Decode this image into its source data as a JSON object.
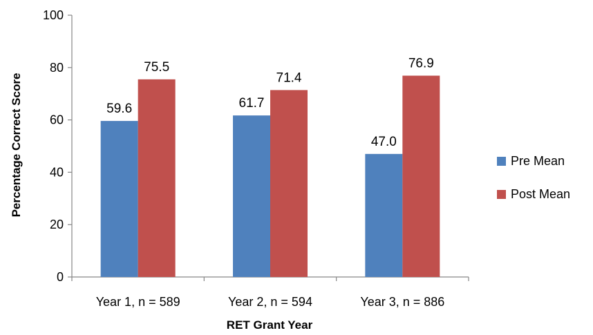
{
  "chart_data": {
    "type": "bar",
    "categories": [
      "Year 1, n = 589",
      "Year 2, n = 594",
      "Year 3, n = 886"
    ],
    "series": [
      {
        "name": "Pre Mean",
        "values": [
          59.6,
          61.7,
          47.0
        ],
        "labels": [
          "59.6",
          "61.7",
          "47.0"
        ],
        "color": "#4f81bd"
      },
      {
        "name": "Post Mean",
        "values": [
          75.5,
          71.4,
          76.9
        ],
        "labels": [
          "75.5",
          "71.4",
          "76.9"
        ],
        "color": "#c0504d"
      }
    ],
    "xlabel": "RET Grant Year",
    "ylabel": "Percentage Correct Score",
    "ylim": [
      0,
      100
    ],
    "yticks": [
      0,
      20,
      40,
      60,
      80,
      100
    ],
    "legend_position": "right",
    "grid": false
  }
}
